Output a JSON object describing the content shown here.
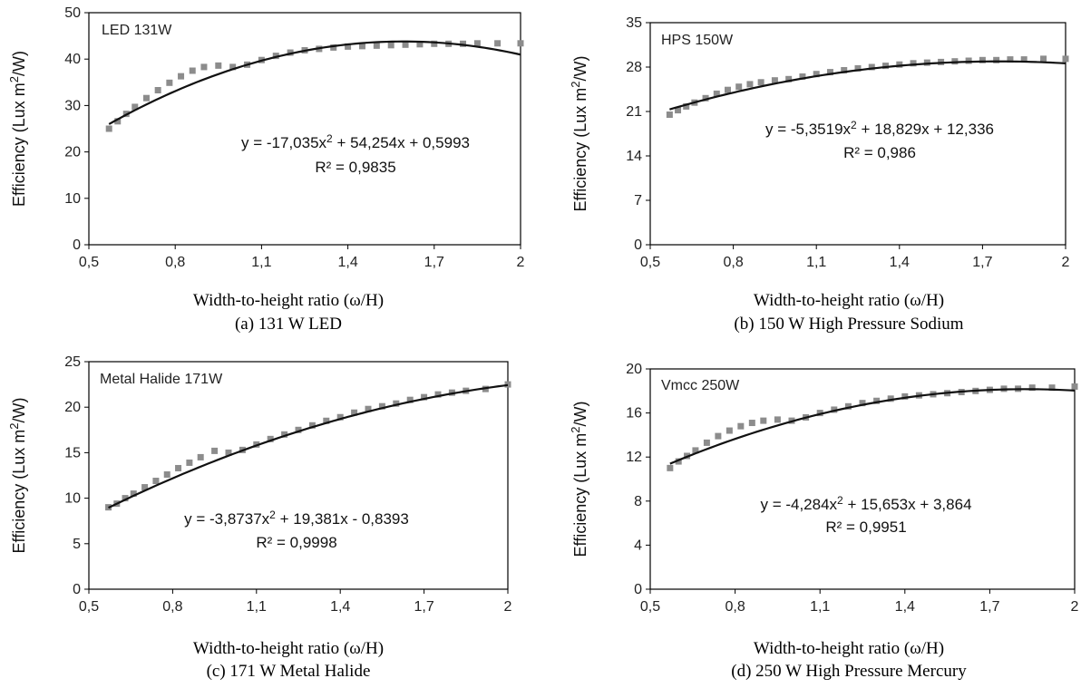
{
  "chart_data": [
    {
      "type": "scatter",
      "label": "LED 131W",
      "caption": "(a) 131 W LED",
      "xlabel": "Width-to-height ratio (ω/H)",
      "ylabel_text": "Efficiency (Lux m",
      "ylabel_sup": "2",
      "ylabel_end": "/W)",
      "xlim": [
        0.5,
        2
      ],
      "ylim": [
        0,
        50
      ],
      "xticks": [
        0.5,
        0.8,
        1.1,
        1.4,
        1.7,
        2
      ],
      "xtick_labels": [
        "0,5",
        "0,8",
        "1,1",
        "1,4",
        "1,7",
        "2"
      ],
      "yticks": [
        0,
        10,
        20,
        30,
        40,
        50
      ],
      "ytick_labels": [
        "0",
        "10",
        "20",
        "30",
        "40",
        "50"
      ],
      "coef": [
        -17.035,
        54.254,
        0.5993
      ],
      "equation_pre": "y = -17,035x",
      "equation_sup": "2",
      "equation_post": " + 54,254x + 0,5993",
      "r2": "R² = 0,9835",
      "points_x": [
        0.57,
        0.6,
        0.63,
        0.66,
        0.7,
        0.74,
        0.78,
        0.82,
        0.86,
        0.9,
        0.95,
        1.0,
        1.05,
        1.1,
        1.15,
        1.2,
        1.25,
        1.3,
        1.35,
        1.4,
        1.45,
        1.5,
        1.55,
        1.6,
        1.65,
        1.7,
        1.75,
        1.8,
        1.85,
        1.92,
        2.0
      ],
      "points_y": [
        25.0,
        26.6,
        28.2,
        29.7,
        31.6,
        33.3,
        34.9,
        36.3,
        37.5,
        38.3,
        38.6,
        38.3,
        38.8,
        39.8,
        40.7,
        41.4,
        41.9,
        42.2,
        42.5,
        42.7,
        42.8,
        42.9,
        43.0,
        43.1,
        43.2,
        43.3,
        43.3,
        43.3,
        43.4,
        43.4,
        43.4
      ]
    },
    {
      "type": "scatter",
      "label": "HPS 150W",
      "caption": "(b) 150 W High Pressure Sodium",
      "xlabel": "Width-to-height ratio (ω/H)",
      "ylabel_text": "Efficiency (Lux m",
      "ylabel_sup": "2",
      "ylabel_end": "/W)",
      "xlim": [
        0.5,
        2
      ],
      "ylim": [
        0,
        35
      ],
      "xticks": [
        0.5,
        0.8,
        1.1,
        1.4,
        1.7,
        2
      ],
      "xtick_labels": [
        "0,5",
        "0,8",
        "1,1",
        "1,4",
        "1,7",
        "2"
      ],
      "yticks": [
        0,
        7,
        14,
        21,
        28,
        35
      ],
      "ytick_labels": [
        "0",
        "7",
        "14",
        "21",
        "28",
        "35"
      ],
      "coef": [
        -5.3519,
        18.829,
        12.336
      ],
      "equation_pre": "y = -5,3519x",
      "equation_sup": "2",
      "equation_post": " + 18,829x + 12,336",
      "r2": "R² = 0,986",
      "points_x": [
        0.57,
        0.6,
        0.63,
        0.66,
        0.7,
        0.74,
        0.78,
        0.82,
        0.86,
        0.9,
        0.95,
        1.0,
        1.05,
        1.1,
        1.15,
        1.2,
        1.25,
        1.3,
        1.35,
        1.4,
        1.45,
        1.5,
        1.55,
        1.6,
        1.65,
        1.7,
        1.75,
        1.8,
        1.85,
        1.92,
        2.0
      ],
      "points_y": [
        20.5,
        21.2,
        21.8,
        22.4,
        23.1,
        23.8,
        24.4,
        24.9,
        25.3,
        25.6,
        25.9,
        26.1,
        26.5,
        26.9,
        27.2,
        27.5,
        27.8,
        28.0,
        28.2,
        28.4,
        28.6,
        28.7,
        28.8,
        28.9,
        29.0,
        29.1,
        29.1,
        29.2,
        29.2,
        29.3,
        29.3
      ]
    },
    {
      "type": "scatter",
      "label": "Metal Halide 171W",
      "caption": "(c) 171 W Metal Halide",
      "xlabel": "Width-to-height ratio (ω/H)",
      "ylabel_text": "Efficiency (Lux m",
      "ylabel_sup": "2",
      "ylabel_end": "/W)",
      "xlim": [
        0.5,
        2
      ],
      "ylim": [
        0,
        25
      ],
      "xticks": [
        0.5,
        0.8,
        1.1,
        1.4,
        1.7,
        2
      ],
      "xtick_labels": [
        "0,5",
        "0,8",
        "1,1",
        "1,4",
        "1,7",
        "2"
      ],
      "yticks": [
        0,
        5,
        10,
        15,
        20,
        25
      ],
      "ytick_labels": [
        "0",
        "5",
        "10",
        "15",
        "20",
        "25"
      ],
      "coef": [
        -3.8737,
        19.381,
        -0.8393
      ],
      "equation_pre": "y = -3,8737x",
      "equation_sup": "2",
      "equation_post": " + 19,381x - 0,8393",
      "r2": "R² = 0,9998",
      "points_x": [
        0.57,
        0.6,
        0.63,
        0.66,
        0.7,
        0.74,
        0.78,
        0.82,
        0.86,
        0.9,
        0.95,
        1.0,
        1.05,
        1.1,
        1.15,
        1.2,
        1.25,
        1.3,
        1.35,
        1.4,
        1.45,
        1.5,
        1.55,
        1.6,
        1.65,
        1.7,
        1.75,
        1.8,
        1.85,
        1.92,
        2.0
      ],
      "points_y": [
        9.0,
        9.4,
        10.0,
        10.5,
        11.2,
        11.9,
        12.6,
        13.3,
        13.9,
        14.5,
        15.2,
        15.0,
        15.3,
        15.9,
        16.5,
        17.0,
        17.5,
        18.0,
        18.5,
        18.9,
        19.4,
        19.8,
        20.1,
        20.4,
        20.8,
        21.1,
        21.4,
        21.6,
        21.8,
        22.0,
        22.5
      ]
    },
    {
      "type": "scatter",
      "label": "Vmcc 250W",
      "caption": "(d) 250 W High Pressure Mercury",
      "xlabel": "Width-to-height ratio (ω/H)",
      "ylabel_text": "Efficiency (Lux m",
      "ylabel_sup": "2",
      "ylabel_end": "/W)",
      "xlim": [
        0.5,
        2
      ],
      "ylim": [
        0,
        20
      ],
      "xticks": [
        0.5,
        0.8,
        1.1,
        1.4,
        1.7,
        2
      ],
      "xtick_labels": [
        "0,5",
        "0,8",
        "1,1",
        "1,4",
        "1,7",
        "2"
      ],
      "yticks": [
        0,
        4,
        8,
        12,
        16,
        20
      ],
      "ytick_labels": [
        "0",
        "4",
        "8",
        "12",
        "16",
        "20"
      ],
      "coef": [
        -4.284,
        15.653,
        3.864
      ],
      "equation_pre": "y = -4,284x",
      "equation_sup": "2",
      "equation_post": " + 15,653x + 3,864",
      "r2": "R² = 0,9951",
      "points_x": [
        0.57,
        0.6,
        0.63,
        0.66,
        0.7,
        0.74,
        0.78,
        0.82,
        0.86,
        0.9,
        0.95,
        1.0,
        1.05,
        1.1,
        1.15,
        1.2,
        1.25,
        1.3,
        1.35,
        1.4,
        1.45,
        1.5,
        1.55,
        1.6,
        1.65,
        1.7,
        1.75,
        1.8,
        1.85,
        1.92,
        2.0
      ],
      "points_y": [
        11.0,
        11.6,
        12.1,
        12.6,
        13.3,
        13.9,
        14.4,
        14.8,
        15.1,
        15.3,
        15.4,
        15.3,
        15.6,
        16.0,
        16.3,
        16.6,
        16.9,
        17.1,
        17.3,
        17.5,
        17.6,
        17.7,
        17.8,
        17.9,
        18.0,
        18.1,
        18.2,
        18.2,
        18.3,
        18.3,
        18.4
      ]
    }
  ]
}
